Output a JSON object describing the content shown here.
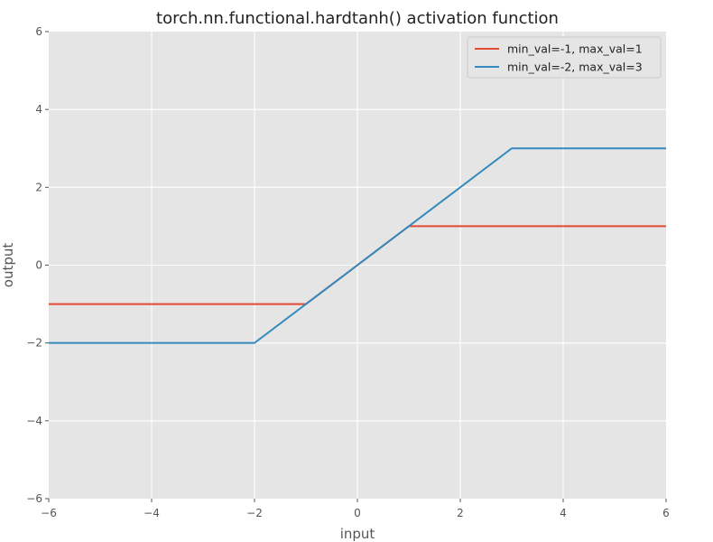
{
  "chart_data": {
    "type": "line",
    "title": "torch.nn.functional.hardtanh() activation function",
    "xlabel": "input",
    "ylabel": "output",
    "xlim": [
      -6,
      6
    ],
    "ylim": [
      -6,
      6
    ],
    "xticks": [
      -6,
      -4,
      -2,
      0,
      2,
      4,
      6
    ],
    "yticks": [
      -6,
      -4,
      -2,
      0,
      2,
      4,
      6
    ],
    "xtick_labels": [
      "−6",
      "−4",
      "−2",
      "0",
      "2",
      "4",
      "6"
    ],
    "ytick_labels": [
      "−6",
      "−4",
      "−2",
      "0",
      "2",
      "4",
      "6"
    ],
    "grid": true,
    "legend_position": "top-right",
    "series": [
      {
        "name": "min_val=-1, max_val=1",
        "color": "#E24A33",
        "x": [
          -6,
          -1,
          1,
          6
        ],
        "y": [
          -1,
          -1,
          1,
          1
        ]
      },
      {
        "name": "min_val=-2, max_val=3",
        "color": "#348ABD",
        "x": [
          -6,
          -2,
          3,
          6
        ],
        "y": [
          -2,
          -2,
          3,
          3
        ]
      }
    ]
  },
  "style": {
    "plot_background": "#E5E5E5",
    "grid_color": "#FFFFFF",
    "tick_color": "#555555"
  }
}
